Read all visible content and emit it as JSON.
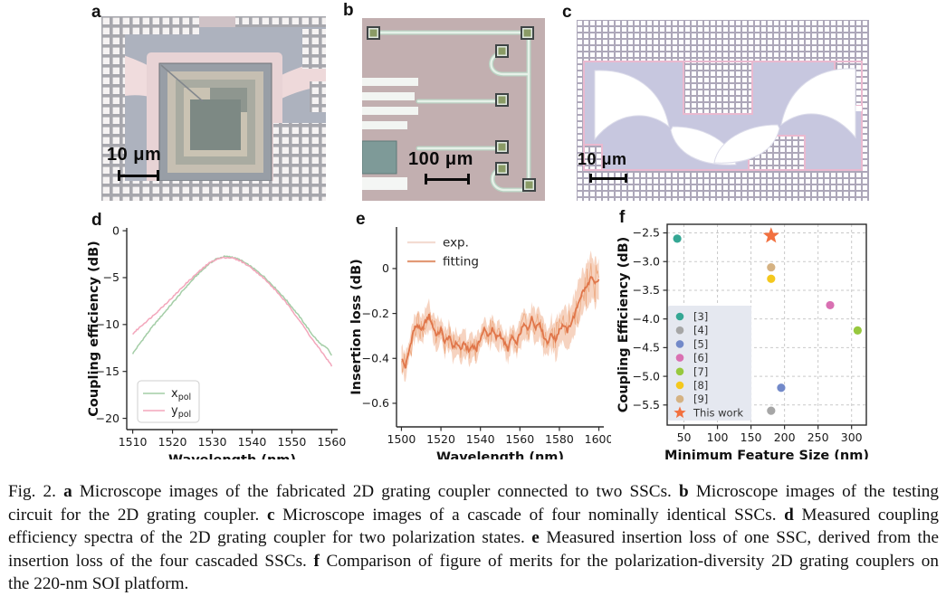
{
  "figure": {
    "panels": {
      "a": {
        "label": "a",
        "scale_bar": "10 μm"
      },
      "b": {
        "label": "b",
        "scale_bar": "100 μm"
      },
      "c": {
        "label": "c",
        "scale_bar": "10 μm"
      },
      "d": {
        "label": "d"
      },
      "e": {
        "label": "e"
      },
      "f": {
        "label": "f"
      }
    }
  },
  "chart_data": [
    {
      "id": "d",
      "type": "line",
      "xlabel": "Wavelength (nm)",
      "ylabel": "Coupling efficiency (dB)",
      "xlim": [
        1508.5,
        1561.5
      ],
      "ylim": [
        -21.2,
        0.3
      ],
      "xticks": [
        1510,
        1520,
        1530,
        1540,
        1550,
        1560
      ],
      "xtick_labels": [
        "1510",
        "1520",
        "1530",
        "1540",
        "1550",
        "1560"
      ],
      "yticks": [
        0,
        -5,
        -10,
        -15,
        -20
      ],
      "ytick_labels": [
        "0",
        "−5",
        "−10",
        "−15",
        "−20"
      ],
      "grid": false,
      "legend_position": "lower left",
      "series": [
        {
          "name": "x_pol",
          "label_base": "x",
          "label_sub": "pol",
          "color": "#a3cda6",
          "x": [
            1510,
            1512,
            1515,
            1518,
            1520,
            1523,
            1526,
            1529,
            1531,
            1533,
            1535,
            1537,
            1540,
            1543,
            1546,
            1549,
            1552,
            1555,
            1557,
            1558,
            1559,
            1560
          ],
          "y": [
            -13.1,
            -11.9,
            -10.2,
            -8.7,
            -7.7,
            -6.2,
            -4.8,
            -3.6,
            -3.0,
            -2.75,
            -2.8,
            -3.1,
            -3.9,
            -4.9,
            -6.2,
            -7.6,
            -9.2,
            -11.0,
            -12.0,
            -12.3,
            -12.6,
            -13.3
          ]
        },
        {
          "name": "y_pol",
          "label_base": "y",
          "label_sub": "pol",
          "color": "#f3a6bb",
          "x": [
            1510,
            1512,
            1515,
            1518,
            1520,
            1523,
            1526,
            1529,
            1531,
            1533,
            1535,
            1537,
            1540,
            1543,
            1546,
            1549,
            1552,
            1555,
            1558,
            1560
          ],
          "y": [
            -11.0,
            -10.2,
            -9.1,
            -7.9,
            -7.1,
            -5.8,
            -4.6,
            -3.5,
            -3.05,
            -2.85,
            -2.9,
            -3.2,
            -4.0,
            -5.1,
            -6.4,
            -7.9,
            -9.6,
            -11.5,
            -13.2,
            -14.4
          ]
        }
      ]
    },
    {
      "id": "e",
      "type": "line",
      "xlabel": "Wavelength (nm)",
      "ylabel": "Insertion loss (dB)",
      "xlim": [
        1497.5,
        1602.5
      ],
      "ylim": [
        -0.705,
        0.185
      ],
      "xticks": [
        1500,
        1520,
        1540,
        1560,
        1580,
        1600
      ],
      "xtick_labels": [
        "1500",
        "1520",
        "1540",
        "1560",
        "1580",
        "1600"
      ],
      "yticks": [
        0,
        -0.2,
        -0.4,
        -0.6
      ],
      "ytick_labels": [
        "0",
        "−0.2",
        "−0.4",
        "−0.6"
      ],
      "grid": false,
      "legend_position": "upper left",
      "band": {
        "name": "exp.",
        "color": "#f6d3c0",
        "base_halfwidth": 0.028,
        "noise_halfwidth": 0.05
      },
      "series": [
        {
          "name": "fitting",
          "color": "#e0764a",
          "x": [
            1500,
            1502,
            1504,
            1506,
            1508,
            1510,
            1512,
            1514,
            1516,
            1518,
            1520,
            1522,
            1524,
            1526,
            1528,
            1530,
            1532,
            1534,
            1536,
            1538,
            1540,
            1542,
            1544,
            1546,
            1548,
            1550,
            1552,
            1554,
            1556,
            1558,
            1560,
            1562,
            1564,
            1566,
            1568,
            1570,
            1572,
            1574,
            1576,
            1578,
            1580,
            1582,
            1584,
            1586,
            1588,
            1590,
            1592,
            1594,
            1596,
            1598,
            1600
          ],
          "y": [
            -0.4,
            -0.44,
            -0.36,
            -0.28,
            -0.25,
            -0.28,
            -0.24,
            -0.21,
            -0.26,
            -0.3,
            -0.27,
            -0.33,
            -0.3,
            -0.35,
            -0.33,
            -0.36,
            -0.33,
            -0.37,
            -0.34,
            -0.36,
            -0.31,
            -0.27,
            -0.3,
            -0.27,
            -0.31,
            -0.29,
            -0.33,
            -0.36,
            -0.3,
            -0.34,
            -0.29,
            -0.25,
            -0.27,
            -0.22,
            -0.26,
            -0.24,
            -0.3,
            -0.33,
            -0.29,
            -0.32,
            -0.27,
            -0.25,
            -0.28,
            -0.24,
            -0.2,
            -0.14,
            -0.1,
            -0.08,
            -0.04,
            -0.07,
            -0.05
          ]
        }
      ],
      "legend": [
        {
          "label": "exp.",
          "color": "#f3dcd2"
        },
        {
          "label": "fitting",
          "color": "#e29a76"
        }
      ]
    },
    {
      "id": "f",
      "type": "scatter",
      "xlabel": "Minimum Feature Size (nm)",
      "ylabel": "Coupling Efficiency (dB)",
      "xlim": [
        25,
        322
      ],
      "ylim": [
        -5.85,
        -2.35
      ],
      "xticks": [
        50,
        100,
        150,
        200,
        250,
        300
      ],
      "xtick_labels": [
        "50",
        "100",
        "150",
        "200",
        "250",
        "300"
      ],
      "yticks": [
        -2.5,
        -3.0,
        -3.5,
        -4.0,
        -4.5,
        -5.0,
        -5.5
      ],
      "ytick_labels": [
        "−2.5",
        "−3.0",
        "−3.5",
        "−4.0",
        "−4.5",
        "−5.0",
        "−5.5"
      ],
      "grid": true,
      "legend_bg": "#e5e8f0",
      "points": [
        {
          "label": "[3]",
          "color": "#35a794",
          "x": 40,
          "y": -2.6,
          "marker": "circle"
        },
        {
          "label": "[4]",
          "color": "#a6a6a6",
          "x": 180,
          "y": -5.6,
          "marker": "circle"
        },
        {
          "label": "[5]",
          "color": "#7289c9",
          "x": 195,
          "y": -5.2,
          "marker": "circle"
        },
        {
          "label": "[6]",
          "color": "#d970b2",
          "x": 268,
          "y": -3.76,
          "marker": "circle"
        },
        {
          "label": "[7]",
          "color": "#97c83e",
          "x": 309,
          "y": -4.2,
          "marker": "circle"
        },
        {
          "label": "[8]",
          "color": "#f4c81d",
          "x": 180,
          "y": -3.3,
          "marker": "circle"
        },
        {
          "label": "[9]",
          "color": "#d5b283",
          "x": 180,
          "y": -3.1,
          "marker": "circle"
        },
        {
          "label": "This work",
          "color": "#f2703f",
          "x": 180,
          "y": -2.55,
          "marker": "star"
        }
      ]
    }
  ],
  "caption": {
    "lines": [
      [
        {
          "t": "Fig. 2. "
        },
        {
          "t": "a",
          "b": true
        },
        {
          "t": " Microscope images of the fabricated 2D grating coupler connected to two SSCs. "
        },
        {
          "t": "b",
          "b": true
        },
        {
          "t": " Microscope images of the testing"
        }
      ],
      [
        {
          "t": "circuit for the 2D grating coupler. "
        },
        {
          "t": "c",
          "b": true
        },
        {
          "t": " Microscope images of a cascade of four nominally identical SSCs. "
        },
        {
          "t": "d",
          "b": true
        },
        {
          "t": " Measured coupling"
        }
      ],
      [
        {
          "t": "efficiency spectra of the 2D grating coupler for two polarization states. "
        },
        {
          "t": "e",
          "b": true
        },
        {
          "t": " Measured insertion loss of one SSC, derived from the"
        }
      ],
      [
        {
          "t": "insertion loss of the four cascaded SSCs. "
        },
        {
          "t": "f",
          "b": true
        },
        {
          "t": " Comparison of figure of merits for the polarization-diversity 2D grating couplers on"
        }
      ],
      [
        {
          "t": "the 220-nm SOI platform."
        }
      ]
    ]
  }
}
